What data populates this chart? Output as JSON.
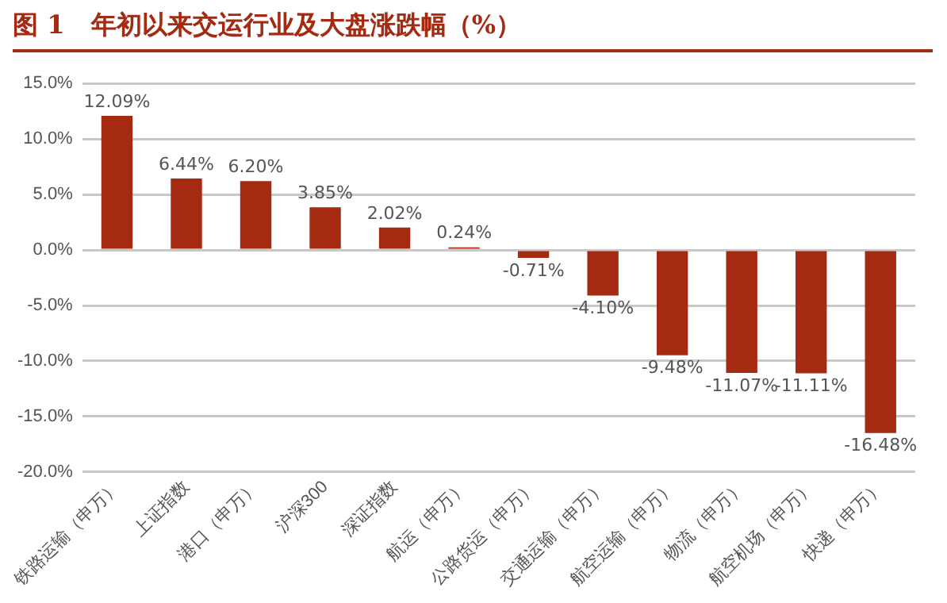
{
  "chart_data": {
    "type": "bar",
    "title": "图 1   年初以来交运行业及大盘涨跌幅（%）",
    "categories": [
      "铁路运输（申万）",
      "上证指数",
      "港口（申万）",
      "沪深300",
      "深证指数",
      "航运（申万）",
      "公路货运（申万）",
      "交通运输（申万）",
      "航空运输（申万）",
      "物流（申万）",
      "航空机场（申万）",
      "快递（申万）"
    ],
    "values": [
      12.09,
      6.44,
      6.2,
      3.85,
      2.02,
      0.24,
      -0.71,
      -4.1,
      -9.48,
      -11.07,
      -11.11,
      -16.48
    ],
    "value_labels": [
      "12.09%",
      "6.44%",
      "6.20%",
      "3.85%",
      "2.02%",
      "0.24%",
      "-0.71%",
      "-4.10%",
      "-9.48%",
      "-11.07%",
      "-11.11%",
      "-16.48%"
    ],
    "color": "#a52a12",
    "ylim": [
      -20,
      15
    ],
    "yticks": [
      {
        "value": -20,
        "label": "-20.0%"
      },
      {
        "value": -15,
        "label": "-15.0%"
      },
      {
        "value": -10,
        "label": "-10.0%"
      },
      {
        "value": -5,
        "label": "-5.0%"
      },
      {
        "value": 0,
        "label": "0.0%"
      },
      {
        "value": 5,
        "label": "5.0%"
      },
      {
        "value": 10,
        "label": "10.0%"
      },
      {
        "value": 15,
        "label": "15.0%"
      }
    ],
    "grid": "y",
    "legend": false
  }
}
